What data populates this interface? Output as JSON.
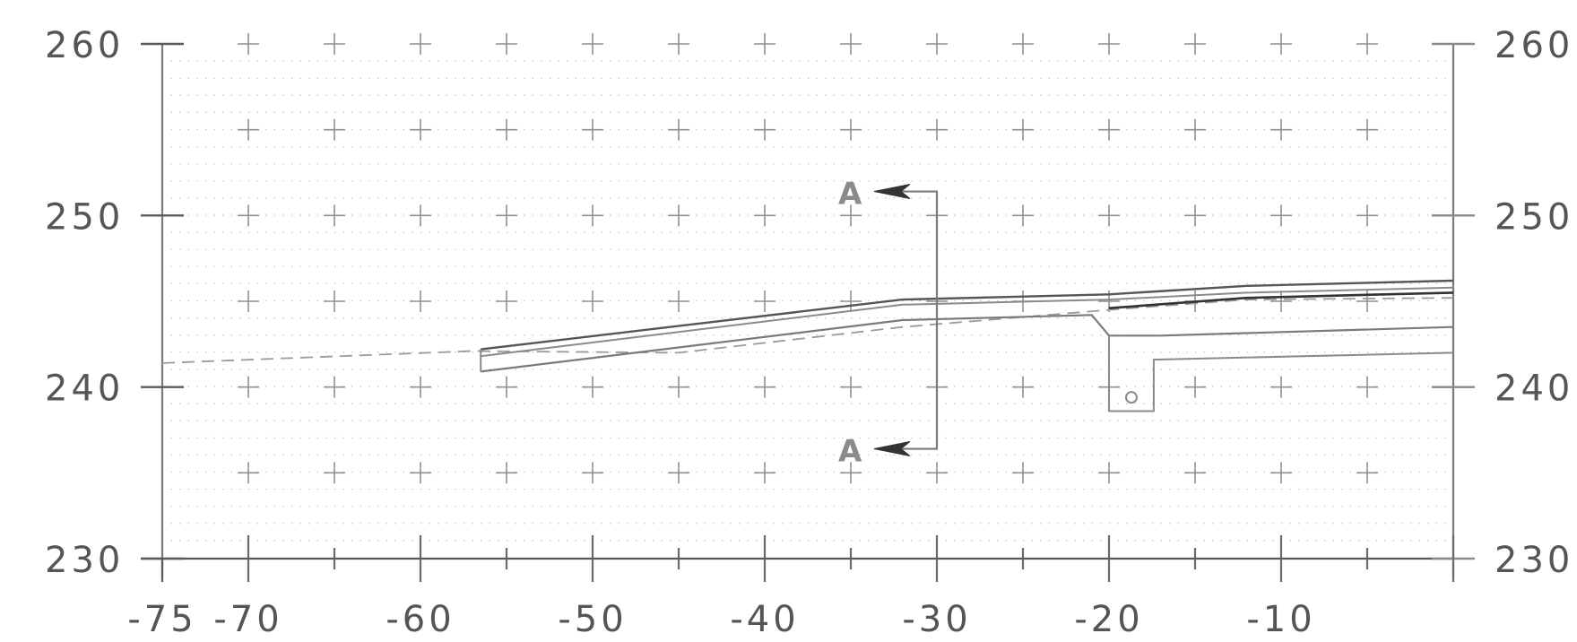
{
  "drawing": {
    "x_ticks": [
      "-75",
      "-70",
      "-60",
      "-50",
      "-40",
      "-30",
      "-20",
      "-10"
    ],
    "y_ticks_left": [
      "260",
      "250",
      "240",
      "230"
    ],
    "y_ticks_right": [
      "260",
      "250",
      "240",
      "230"
    ],
    "section_labels": [
      "A",
      "A"
    ],
    "grid": "dotted",
    "colors": {
      "dark": "#3a3a3a",
      "medium": "#8c8c8c",
      "grid": "#b5b5b5"
    }
  },
  "chart_data": {
    "type": "line",
    "xlim": [
      -75,
      0
    ],
    "ylim": [
      230,
      260
    ],
    "x_tick_values": [
      -75,
      -70,
      -60,
      -50,
      -40,
      -30,
      -20,
      -10
    ],
    "y_tick_values": [
      230,
      240,
      250,
      260
    ],
    "grid": true,
    "series": [
      {
        "style": "dashed",
        "points": [
          [
            -75,
            241.4
          ],
          [
            -57,
            242.1
          ],
          [
            -45,
            242.0
          ],
          [
            -32,
            243.5
          ],
          [
            -20,
            244.5
          ],
          [
            -12,
            245.1
          ],
          [
            0,
            245.2
          ]
        ]
      },
      {
        "style": "solid",
        "points": [
          [
            -56.5,
            242.2
          ],
          [
            -32,
            245.1
          ],
          [
            -20,
            245.4
          ],
          [
            -12,
            245.9
          ],
          [
            0,
            246.2
          ]
        ]
      },
      {
        "style": "solid",
        "points": [
          [
            -56.5,
            241.8
          ],
          [
            -32,
            244.8
          ],
          [
            -20,
            245.1
          ],
          [
            -12,
            245.5
          ],
          [
            0,
            245.8
          ]
        ]
      },
      {
        "style": "solid",
        "points": [
          [
            -56.5,
            240.9
          ],
          [
            -32,
            243.9
          ],
          [
            -21,
            244.2
          ],
          [
            -20,
            243.0
          ],
          [
            -17,
            243.0
          ],
          [
            0,
            243.5
          ]
        ]
      },
      {
        "style": "solid",
        "points": [
          [
            -20,
            243.0
          ],
          [
            -20,
            238.6
          ],
          [
            -17.4,
            238.6
          ],
          [
            -17.4,
            241.6
          ],
          [
            0,
            242.0
          ]
        ]
      },
      {
        "style": "solid",
        "points": [
          [
            -20,
            244.6
          ],
          [
            -12,
            245.2
          ],
          [
            0,
            245.5
          ]
        ]
      }
    ],
    "section_line": {
      "x": -30,
      "y_top": 251.4,
      "y_bottom": 236.4
    }
  }
}
